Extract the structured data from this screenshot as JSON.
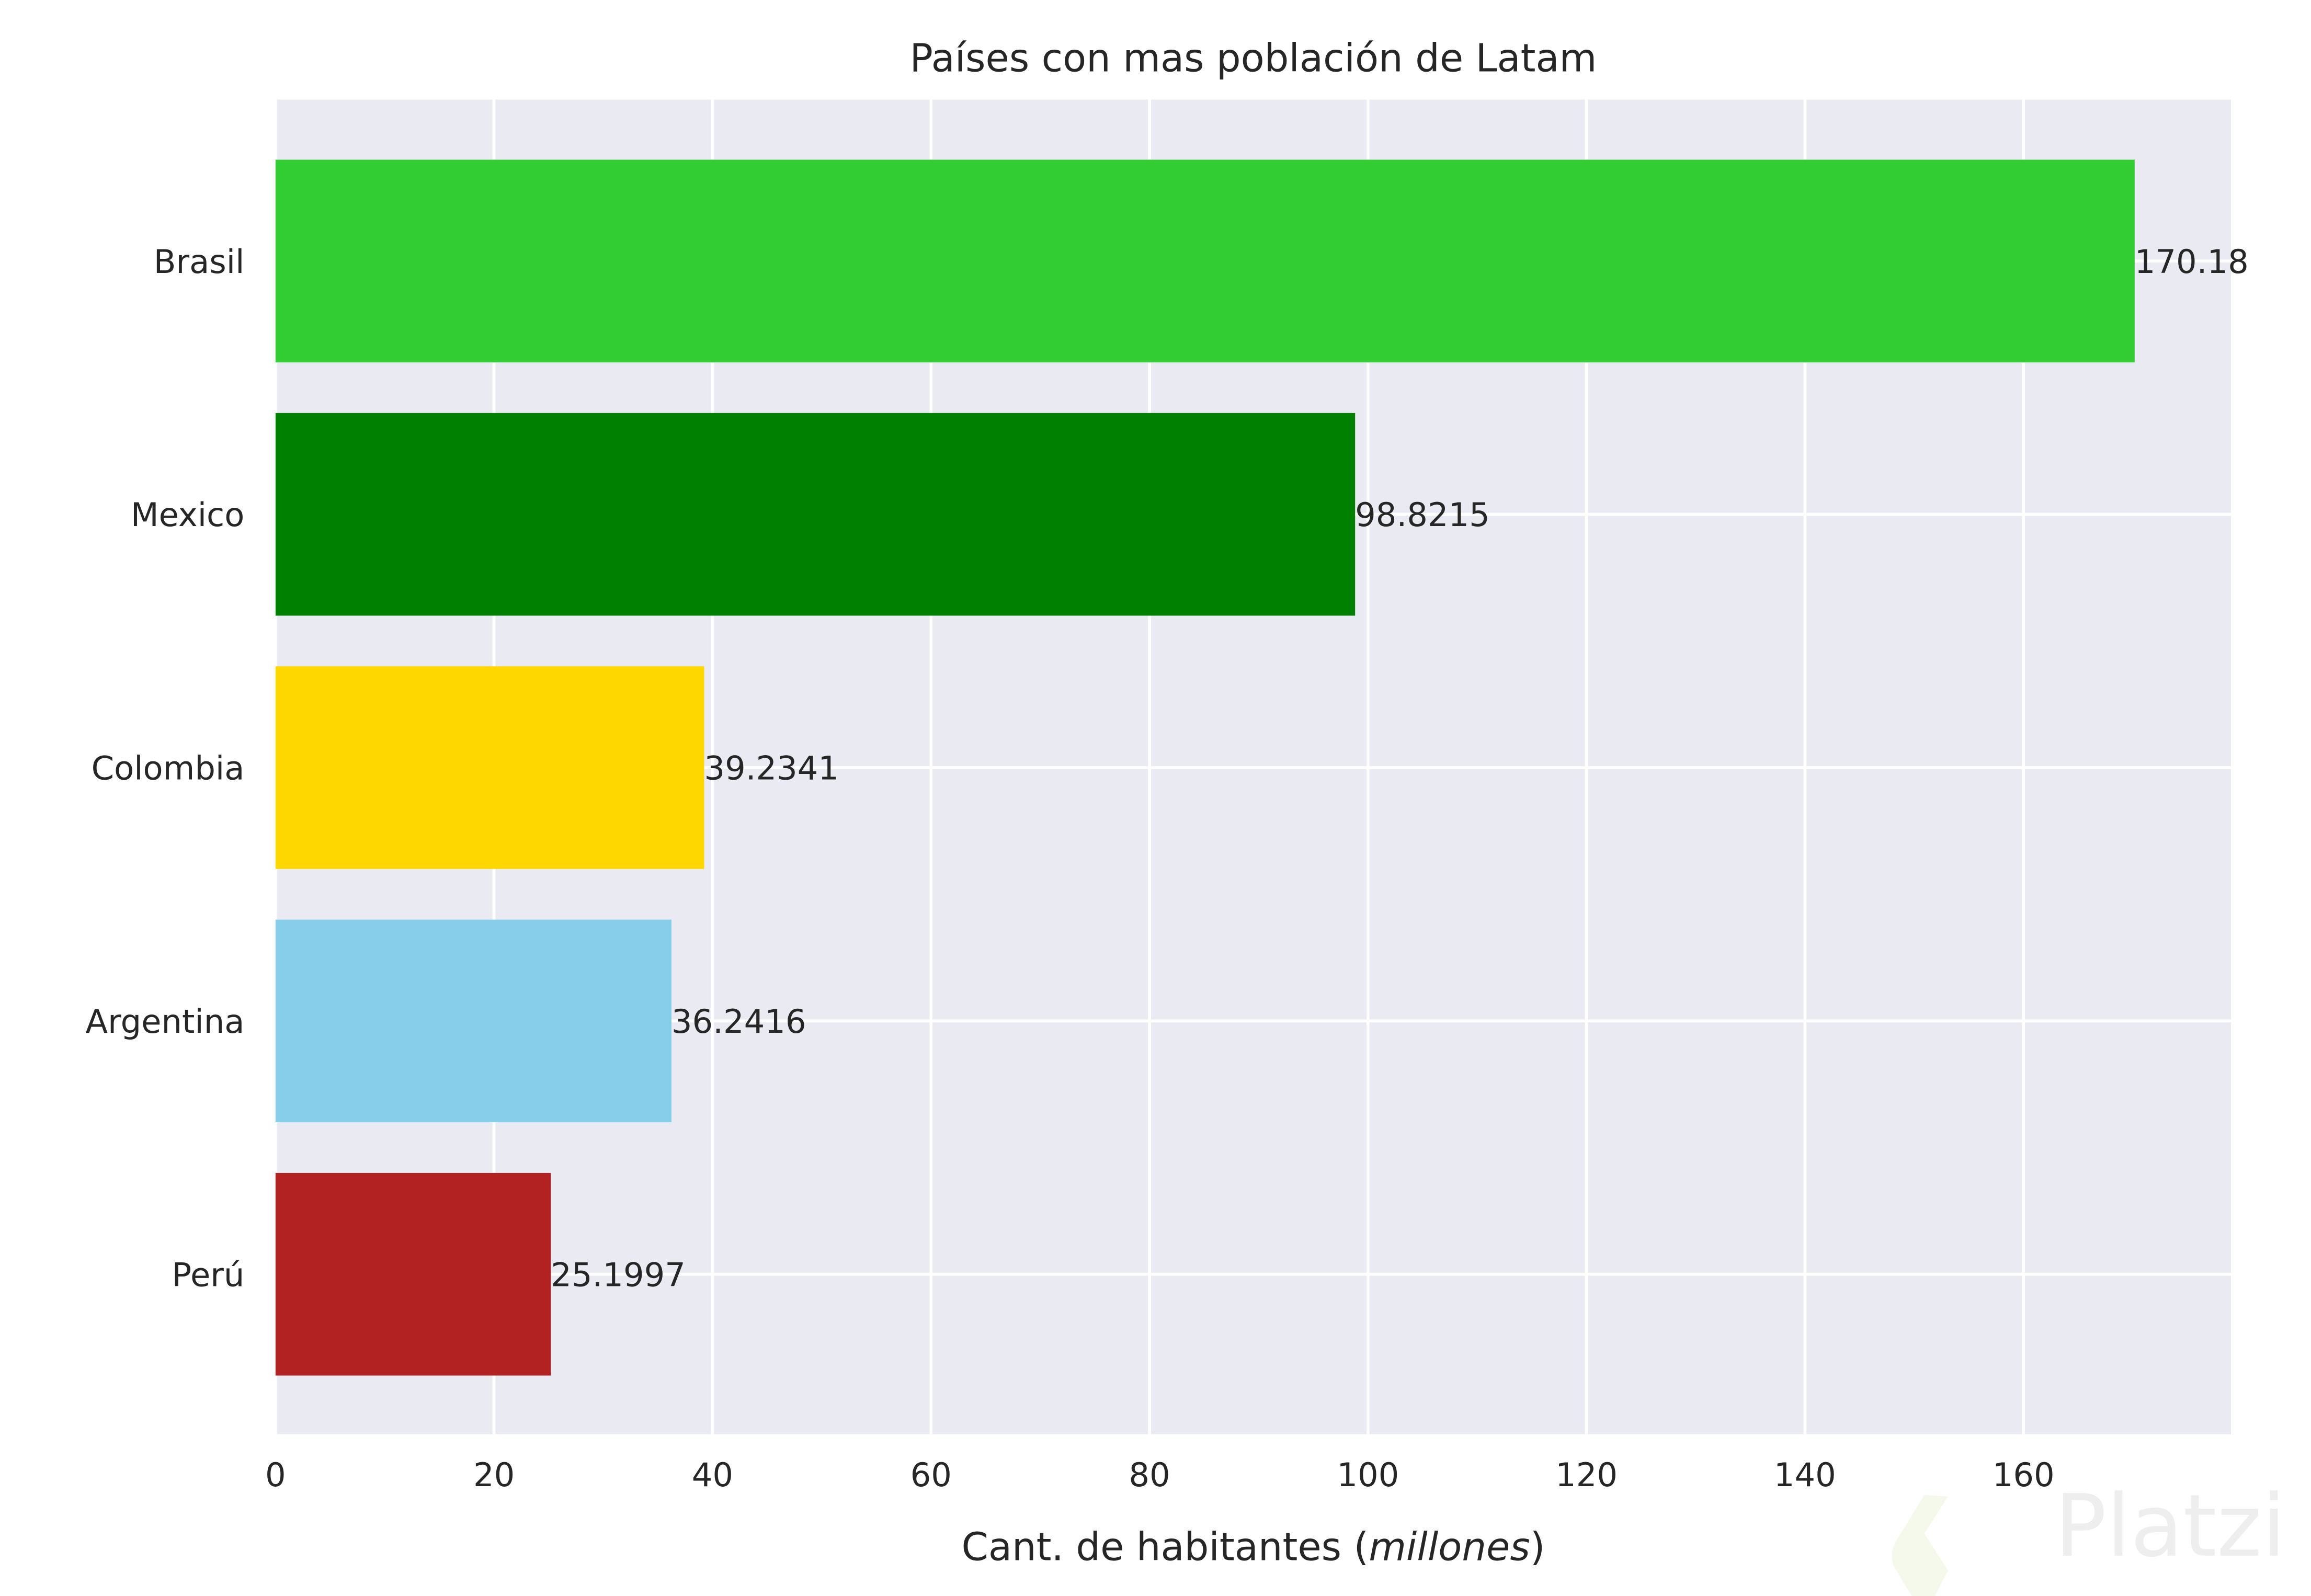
{
  "chart_data": {
    "type": "bar",
    "orientation": "horizontal",
    "title": "Países con mas población de Latam",
    "xlabel_prefix": "Cant. de habitantes (",
    "xlabel_italic": "millones",
    "xlabel_suffix": ")",
    "ylabel": "",
    "categories": [
      "Brasil",
      "Mexico",
      "Colombia",
      "Argentina",
      "Perú"
    ],
    "values": [
      170.18,
      98.8215,
      39.2341,
      36.2416,
      25.1997
    ],
    "data_labels": [
      "170.18",
      "98.8215",
      "39.2341",
      "36.2416",
      "25.1997"
    ],
    "colors": [
      "#32CD32",
      "#008000",
      "#FFD700",
      "#87CEEB",
      "#B22222"
    ],
    "xlim": [
      0,
      179
    ],
    "xticks": [
      0,
      20,
      40,
      60,
      80,
      100,
      120,
      140,
      160
    ],
    "grid": true,
    "background": "#EAEAF2"
  },
  "watermark": {
    "text": "Platzi"
  }
}
